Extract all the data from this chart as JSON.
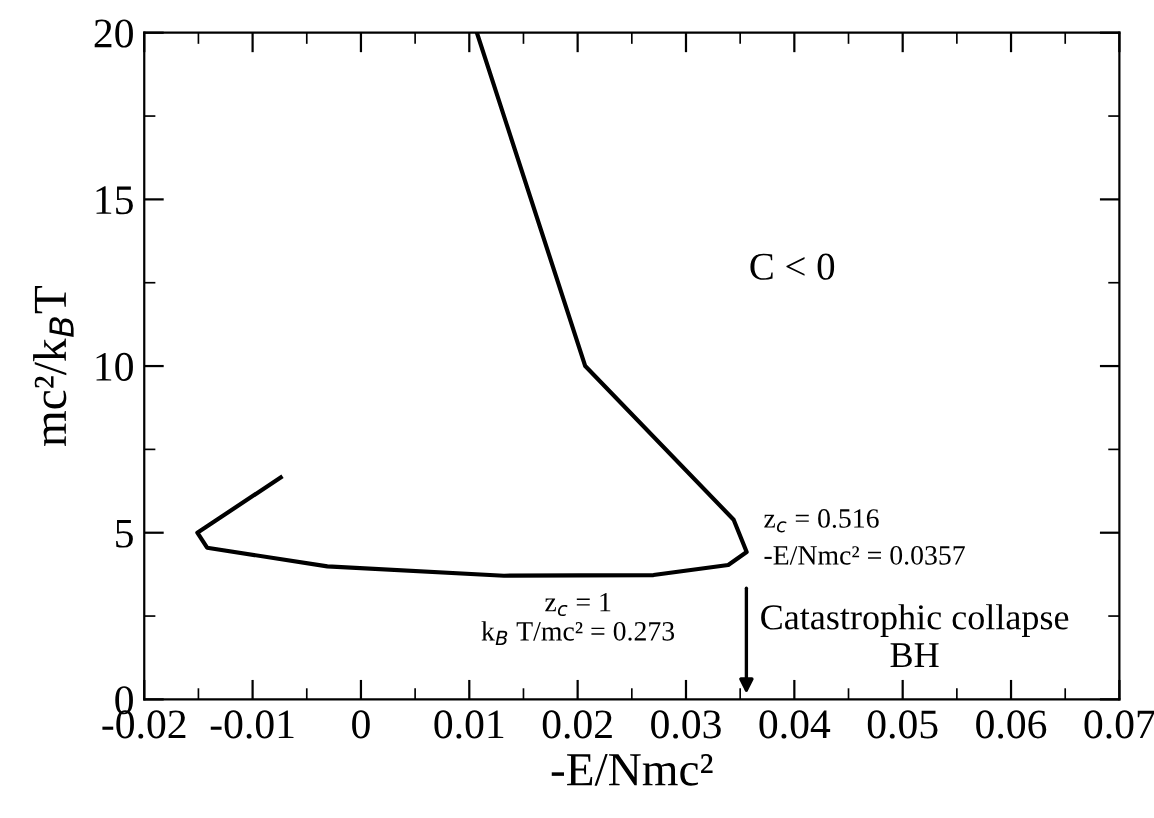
{
  "chart_data": {
    "type": "line",
    "xlabel": "-E/Nmc²",
    "ylabel": "mc²/k$_{B}$T",
    "x": [
      0.0107,
      0.0207,
      0.0344,
      0.0356,
      0.0339,
      0.027,
      0.0132,
      -0.0031,
      -0.0142,
      -0.0151,
      -0.0074
    ],
    "series": [
      {
        "color": "#000000",
        "values": [
          20,
          10,
          5.39,
          4.42,
          4.03,
          3.73,
          3.71,
          3.99,
          4.55,
          5.0,
          6.66
        ]
      }
    ],
    "xlim": [
      -0.02,
      0.07
    ],
    "ylim": [
      0,
      20
    ],
    "xticks": [
      {
        "value": -0.02,
        "label": "-0.02"
      },
      {
        "value": -0.01,
        "label": "-0.01"
      },
      0,
      0.01,
      0.02,
      0.03,
      0.04,
      0.05,
      0.06,
      0.07
    ],
    "yticks": [
      0,
      5,
      10,
      15,
      20
    ],
    "grid": false,
    "legend": false,
    "marker": "none",
    "line_style": "solid",
    "annotations": [
      "C < 0",
      "z$_{c}$ = 1\nk$_{B}$ T/mc² = 0.273",
      "z$_{c}$ = 0.516\n-E/Nmc² = 0.0357",
      "Catastrophic collapse\nBH"
    ]
  }
}
